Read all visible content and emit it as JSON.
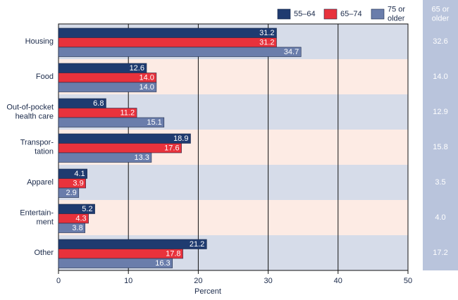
{
  "chart_data": {
    "type": "hbar",
    "categories": [
      "Housing",
      "Food",
      "Out-of-pocket\nhealth care",
      "Transpor-\ntation",
      "Apparel",
      "Entertain-\nment",
      "Other"
    ],
    "series": [
      {
        "name": "55–64",
        "color": "#1f3b70",
        "values": [
          31.2,
          12.6,
          6.8,
          18.9,
          4.1,
          5.2,
          21.2
        ],
        "value_labels": [
          "31.2",
          "12.6",
          "6.8",
          "18.9",
          "4.1",
          "5.2",
          "21.2"
        ]
      },
      {
        "name": "65–74",
        "color": "#e8323c",
        "values": [
          31.2,
          14.0,
          11.2,
          17.6,
          3.9,
          4.3,
          17.8
        ],
        "value_labels": [
          "31.2",
          "14.0",
          "11.2",
          "17.6",
          "3.9",
          "4.3",
          "17.8"
        ]
      },
      {
        "name": "75 or\nolder",
        "color": "#6a7dab",
        "values": [
          34.7,
          14.0,
          15.1,
          13.3,
          2.9,
          3.8,
          16.3
        ],
        "value_labels": [
          "34.7",
          "14.0",
          "15.1",
          "13.3",
          "2.9",
          "3.8",
          "16.3"
        ]
      }
    ],
    "xlim": [
      0,
      50
    ],
    "xticks": [
      0,
      10,
      20,
      30,
      40,
      50
    ],
    "xlabel": "Percent",
    "grid": true,
    "band_colors": [
      "#d6dce9",
      "#fdebe4"
    ],
    "side_column": {
      "title": "65 or\nolder",
      "values": [
        "32.6",
        "14.0",
        "12.9",
        "15.8",
        "3.5",
        "4.0",
        "17.2"
      ]
    }
  }
}
